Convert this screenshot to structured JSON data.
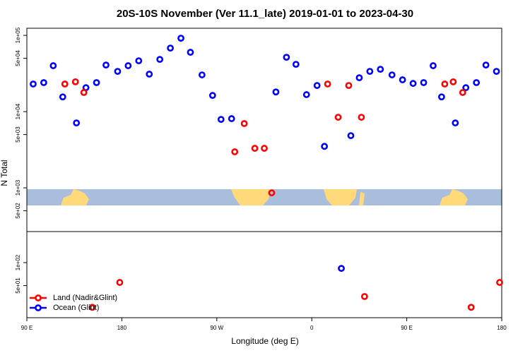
{
  "chart_data": [
    {
      "type": "scatter",
      "title": "20S-10S November (Ver 11.1_late)   2019-01-01 to 2023-04-30",
      "y_label": "N Total",
      "log_y": true,
      "xlim": [
        90,
        540
      ],
      "ylim": [
        267,
        124000
      ],
      "yticks": [
        {
          "value": 100000,
          "label": "1e+05"
        },
        {
          "value": 50000,
          "label": "5e+04"
        },
        {
          "value": 10000,
          "label": "1e+04"
        },
        {
          "value": 5000,
          "label": "5e+03"
        },
        {
          "value": 1000,
          "label": "1e+03"
        },
        {
          "value": 500,
          "label": "5e+02"
        }
      ],
      "series": [
        {
          "color": "#0000ff",
          "x": [
            96,
            106,
            115,
            124,
            137,
            146,
            156,
            165,
            176,
            186,
            196,
            206,
            216,
            226,
            236,
            245,
            256,
            266,
            274,
            284,
            326,
            336,
            345,
            355,
            365,
            372,
            397,
            405,
            415,
            425,
            436,
            446,
            456,
            466,
            475,
            483,
            496,
            506,
            516,
            525,
            535
          ],
          "values": [
            23000,
            24000,
            40000,
            15600,
            7100,
            20600,
            24000,
            40800,
            33700,
            40000,
            46400,
            31000,
            48400,
            68100,
            91800,
            60000,
            30300,
            16300,
            7900,
            8080,
            18100,
            51600,
            41700,
            16700,
            22000,
            3500,
            4840,
            27800,
            33700,
            35900,
            30300,
            26100,
            23400,
            24000,
            40000,
            15600,
            7100,
            20600,
            24000,
            40800,
            33700
          ]
        },
        {
          "color": "#ff0000",
          "x": [
            126,
            136,
            144,
            287,
            296,
            306,
            315,
            322,
            375,
            385,
            395,
            407,
            486,
            494,
            503
          ],
          "values": [
            23000,
            24600,
            17800,
            2970,
            6970,
            3300,
            3300,
            860,
            23000,
            8430,
            22000,
            8430,
            23000,
            24600,
            17800
          ]
        }
      ]
    },
    {
      "type": "scatter",
      "x_label": "Longitude (deg E)",
      "log_y": true,
      "xlim": [
        90,
        540
      ],
      "ylim": [
        19,
        255
      ],
      "xticks": [
        {
          "value": 90,
          "label": "90 E"
        },
        180,
        {
          "value": 270,
          "label": "90 W"
        },
        {
          "value": 360,
          "label": "0"
        },
        {
          "value": 450,
          "label": "90 E"
        },
        {
          "value": 540,
          "label": "180"
        }
      ],
      "yticks": [
        {
          "value": 100,
          "label": "1e+02"
        },
        {
          "value": 50,
          "label": "5e+01"
        }
      ],
      "legend": "lower left",
      "series": [
        {
          "name": "Land (Nadir&Glint)",
          "color": "#ff0000",
          "x": [
            152,
            178,
            410,
            511,
            538
          ],
          "values": [
            26,
            55,
            36,
            26,
            55
          ]
        },
        {
          "name": "Ocean (Glint)",
          "color": "#0000ff",
          "x": [
            388
          ],
          "values": [
            84
          ]
        }
      ]
    }
  ]
}
